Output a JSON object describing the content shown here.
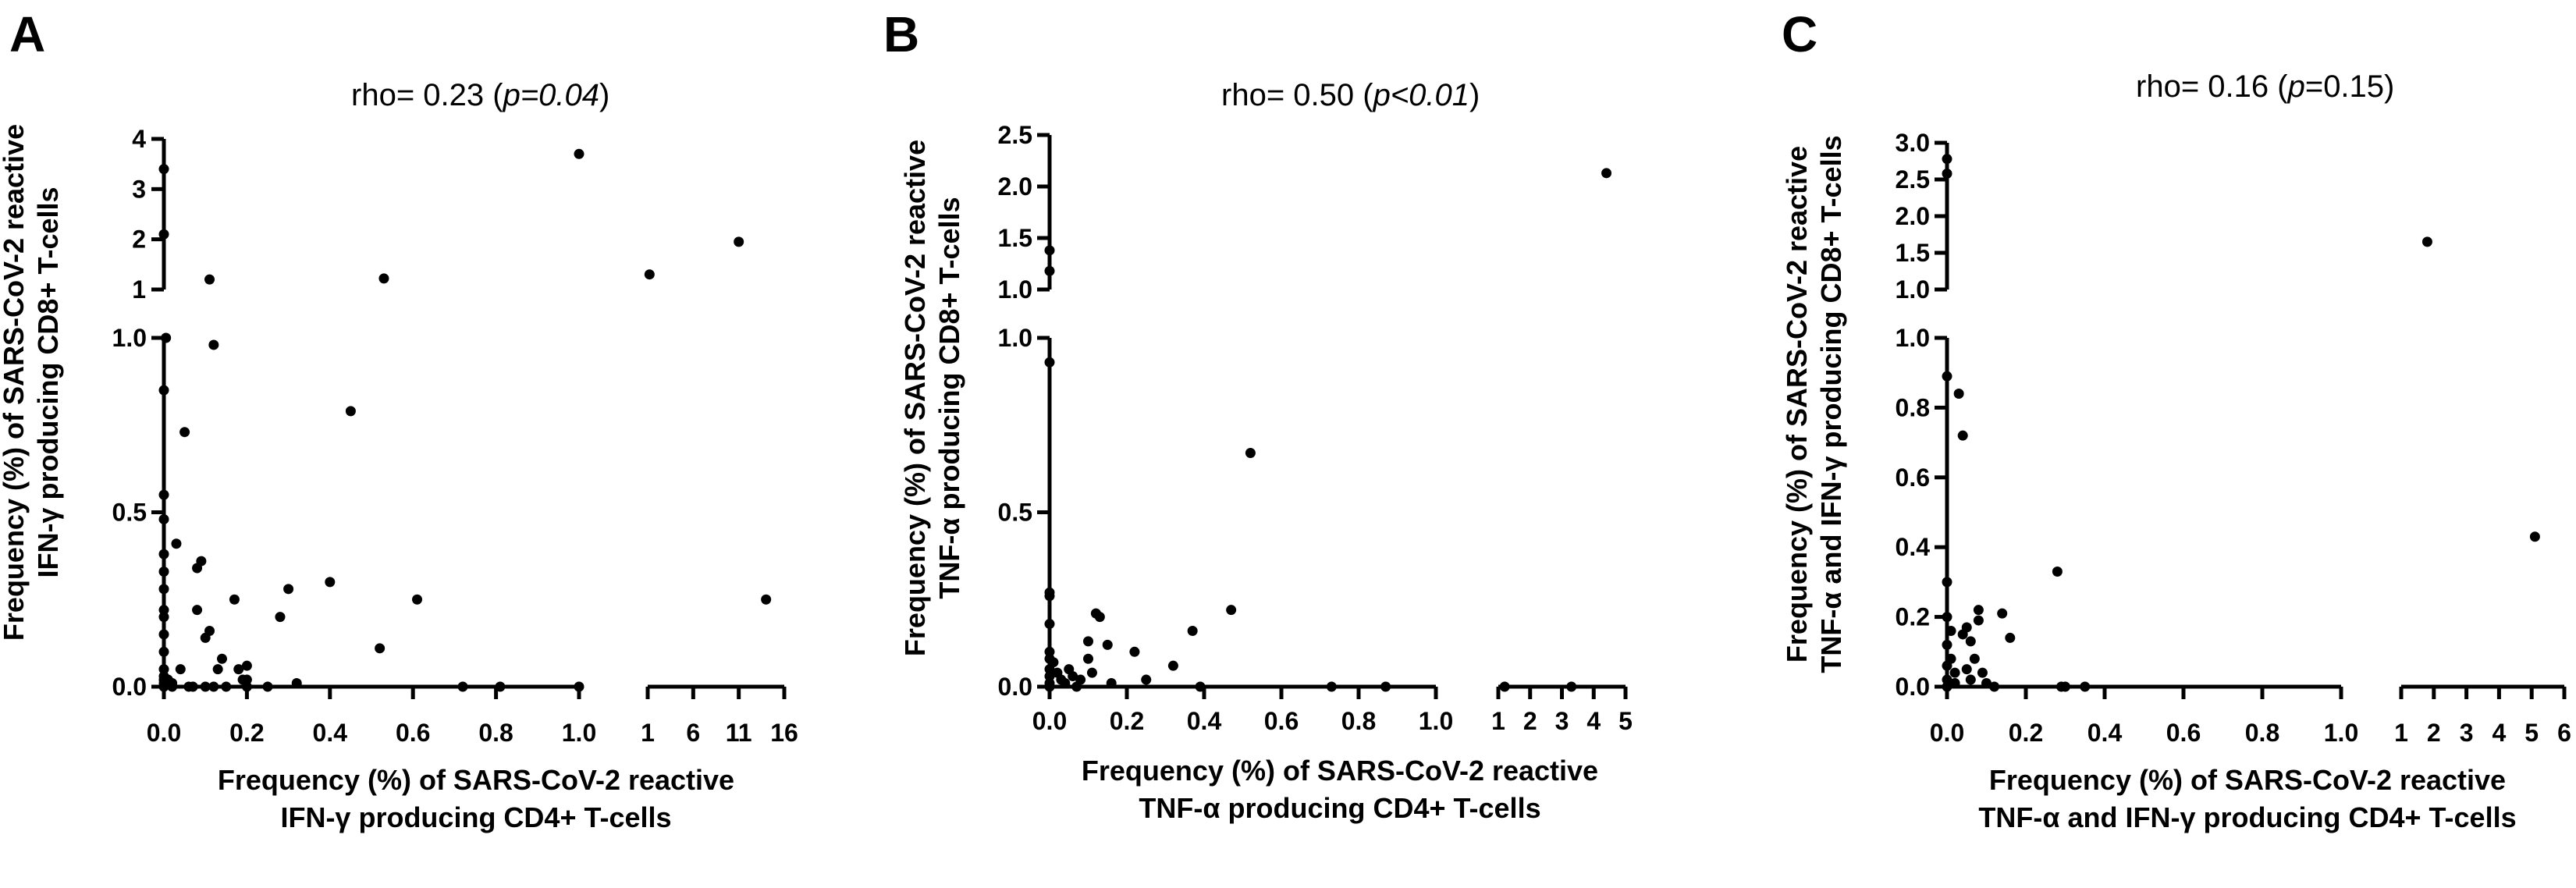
{
  "chart_data": [
    {
      "type": "scatter",
      "panel": "A",
      "stat_text": {
        "prefix": "rho= 0.23 (",
        "italic": "p=0.04",
        "suffix": ")"
      },
      "xlabel": [
        "Frequency (%) of SARS-CoV-2 reactive",
        "IFN-γ producing CD4+ T-cells"
      ],
      "ylabel": [
        "Frequency (%) of  SARS-CoV-2 reactive",
        "IFN-γ producing CD8+ T-cells"
      ],
      "x_ticks_main": [
        "0.0",
        "0.2",
        "0.4",
        "0.6",
        "0.8",
        "1.0"
      ],
      "x_ticks_break": [
        "1",
        "6",
        "11",
        "16"
      ],
      "y_ticks_main": [
        "0.0",
        "0.5",
        "1.0"
      ],
      "y_ticks_break": [
        "1",
        "2",
        "3",
        "4"
      ],
      "x_main": [
        0,
        1
      ],
      "x_break": [
        1,
        16
      ],
      "y_main": [
        0,
        1
      ],
      "y_break": [
        1,
        4
      ],
      "points": [
        [
          0,
          0.85
        ],
        [
          0,
          0.55
        ],
        [
          0,
          0.48
        ],
        [
          0,
          0.38
        ],
        [
          0,
          0.33
        ],
        [
          0,
          0.28
        ],
        [
          0,
          0.22
        ],
        [
          0,
          0.2
        ],
        [
          0,
          0.15
        ],
        [
          0,
          0.1
        ],
        [
          0,
          0.05
        ],
        [
          0,
          0.03
        ],
        [
          0,
          0.02
        ],
        [
          0,
          0.01
        ],
        [
          0,
          0
        ],
        [
          0.005,
          1.0
        ],
        [
          0.01,
          0.02
        ],
        [
          0.02,
          0.01
        ],
        [
          0.02,
          0
        ],
        [
          0.03,
          0.41
        ],
        [
          0.04,
          0.05
        ],
        [
          0.05,
          0.73
        ],
        [
          0.06,
          0
        ],
        [
          0.07,
          0
        ],
        [
          0.08,
          0.34
        ],
        [
          0.09,
          0.36
        ],
        [
          0.08,
          0.22
        ],
        [
          0.1,
          0.14
        ],
        [
          0.11,
          0.16
        ],
        [
          0.12,
          0.98
        ],
        [
          0.1,
          0
        ],
        [
          0.12,
          0
        ],
        [
          0.13,
          0.05
        ],
        [
          0.14,
          0.08
        ],
        [
          0.15,
          0
        ],
        [
          0.17,
          0.25
        ],
        [
          0.18,
          0.05
        ],
        [
          0.19,
          0.02
        ],
        [
          0.2,
          0.06
        ],
        [
          0.2,
          0
        ],
        [
          0.2,
          0.02
        ],
        [
          0.25,
          0
        ],
        [
          0.28,
          0.2
        ],
        [
          0.3,
          0.28
        ],
        [
          0.32,
          0.01
        ],
        [
          0.4,
          0.3
        ],
        [
          0.45,
          0.79
        ],
        [
          0.52,
          0.11
        ],
        [
          0.61,
          0.25
        ],
        [
          0.72,
          0
        ],
        [
          0.81,
          0
        ],
        [
          0,
          3.4
        ],
        [
          0,
          2.1
        ],
        [
          0.11,
          1.2
        ],
        [
          0.53,
          1.22
        ],
        [
          1.2,
          1.3
        ],
        [
          1.0,
          3.7
        ],
        [
          11,
          1.95
        ],
        [
          14,
          0.25
        ],
        [
          1.0,
          0
        ]
      ]
    },
    {
      "type": "scatter",
      "panel": "B",
      "stat_text": {
        "prefix": "rho= 0.50 (",
        "italic": "p<0.01",
        "suffix": ")"
      },
      "xlabel": [
        "Frequency (%) of SARS-CoV-2 reactive",
        "TNF-α producing CD4+ T-cells"
      ],
      "ylabel": [
        "Frequency (%) of  SARS-CoV-2 reactive",
        "TNF-α producing CD8+ T-cells"
      ],
      "x_ticks_main": [
        "0.0",
        "0.2",
        "0.4",
        "0.6",
        "0.8",
        "1.0"
      ],
      "x_ticks_break": [
        "1",
        "2",
        "3",
        "4",
        "5"
      ],
      "y_ticks_main": [
        "0.0",
        "0.5",
        "1.0"
      ],
      "y_ticks_break": [
        "1.0",
        "1.5",
        "2.0",
        "2.5"
      ],
      "x_main": [
        0,
        1
      ],
      "x_break": [
        1,
        5
      ],
      "y_main": [
        0,
        1
      ],
      "y_break": [
        1,
        2.5
      ],
      "points": [
        [
          0,
          0.93
        ],
        [
          0,
          0.27
        ],
        [
          0,
          0.26
        ],
        [
          0,
          0.18
        ],
        [
          0,
          0.1
        ],
        [
          0,
          0.08
        ],
        [
          0,
          0.05
        ],
        [
          0,
          0.03
        ],
        [
          0,
          0.01
        ],
        [
          0,
          0
        ],
        [
          0.01,
          0.07
        ],
        [
          0.02,
          0.04
        ],
        [
          0.03,
          0.02
        ],
        [
          0.04,
          0.01
        ],
        [
          0.05,
          0.05
        ],
        [
          0.06,
          0.03
        ],
        [
          0.07,
          0
        ],
        [
          0.08,
          0.02
        ],
        [
          0.1,
          0.13
        ],
        [
          0.1,
          0.08
        ],
        [
          0.11,
          0.04
        ],
        [
          0.12,
          0.21
        ],
        [
          0.13,
          0.2
        ],
        [
          0.15,
          0.12
        ],
        [
          0.16,
          0.01
        ],
        [
          0.22,
          0.1
        ],
        [
          0.25,
          0.02
        ],
        [
          0.32,
          0.06
        ],
        [
          0.37,
          0.16
        ],
        [
          0.39,
          0
        ],
        [
          0.47,
          0.22
        ],
        [
          0.52,
          0.67
        ],
        [
          0.73,
          0
        ],
        [
          0.87,
          0
        ],
        [
          0,
          1.38
        ],
        [
          0,
          1.18
        ],
        [
          4.4,
          2.13
        ],
        [
          1.2,
          0
        ],
        [
          3.3,
          0
        ]
      ]
    },
    {
      "type": "scatter",
      "panel": "C",
      "stat_text": {
        "prefix": "rho= 0.16 (",
        "italic": "p",
        "suffix": "=0.15)"
      },
      "xlabel": [
        "Frequency (%) of SARS-CoV-2 reactive",
        "TNF-α and IFN-γ producing CD4+ T-cells"
      ],
      "ylabel": [
        "Frequency (%) of  SARS-CoV-2 reactive",
        "TNF-α and IFN-γ producing CD8+ T-cells"
      ],
      "x_ticks_main": [
        "0.0",
        "0.2",
        "0.4",
        "0.6",
        "0.8",
        "1.0"
      ],
      "x_ticks_break": [
        "1",
        "2",
        "3",
        "4",
        "5",
        "6"
      ],
      "y_ticks_main": [
        "0.0",
        "0.2",
        "0.4",
        "0.6",
        "0.8",
        "1.0"
      ],
      "y_ticks_break": [
        "1.0",
        "1.5",
        "2.0",
        "2.5",
        "3.0"
      ],
      "x_main": [
        0,
        1
      ],
      "x_break": [
        1,
        6
      ],
      "y_main": [
        0,
        1
      ],
      "y_break": [
        1,
        3
      ],
      "points": [
        [
          0,
          0.89
        ],
        [
          0,
          0.3
        ],
        [
          0,
          0.2
        ],
        [
          0,
          0.12
        ],
        [
          0,
          0.06
        ],
        [
          0,
          0.02
        ],
        [
          0,
          0
        ],
        [
          0.01,
          0.16
        ],
        [
          0.01,
          0.08
        ],
        [
          0.02,
          0.04
        ],
        [
          0.02,
          0.01
        ],
        [
          0.03,
          0.84
        ],
        [
          0.04,
          0.72
        ],
        [
          0.04,
          0.15
        ],
        [
          0.05,
          0.17
        ],
        [
          0.05,
          0.05
        ],
        [
          0.06,
          0.13
        ],
        [
          0.06,
          0.02
        ],
        [
          0.07,
          0.08
        ],
        [
          0.08,
          0.22
        ],
        [
          0.08,
          0.19
        ],
        [
          0.09,
          0.04
        ],
        [
          0.1,
          0.01
        ],
        [
          0.12,
          0
        ],
        [
          0.14,
          0.21
        ],
        [
          0.16,
          0.14
        ],
        [
          0.28,
          0.33
        ],
        [
          0.29,
          0
        ],
        [
          0.3,
          0
        ],
        [
          0.35,
          0
        ],
        [
          0,
          2.78
        ],
        [
          0,
          2.58
        ],
        [
          1.8,
          1.65
        ],
        [
          5.1,
          0.43
        ]
      ]
    }
  ]
}
